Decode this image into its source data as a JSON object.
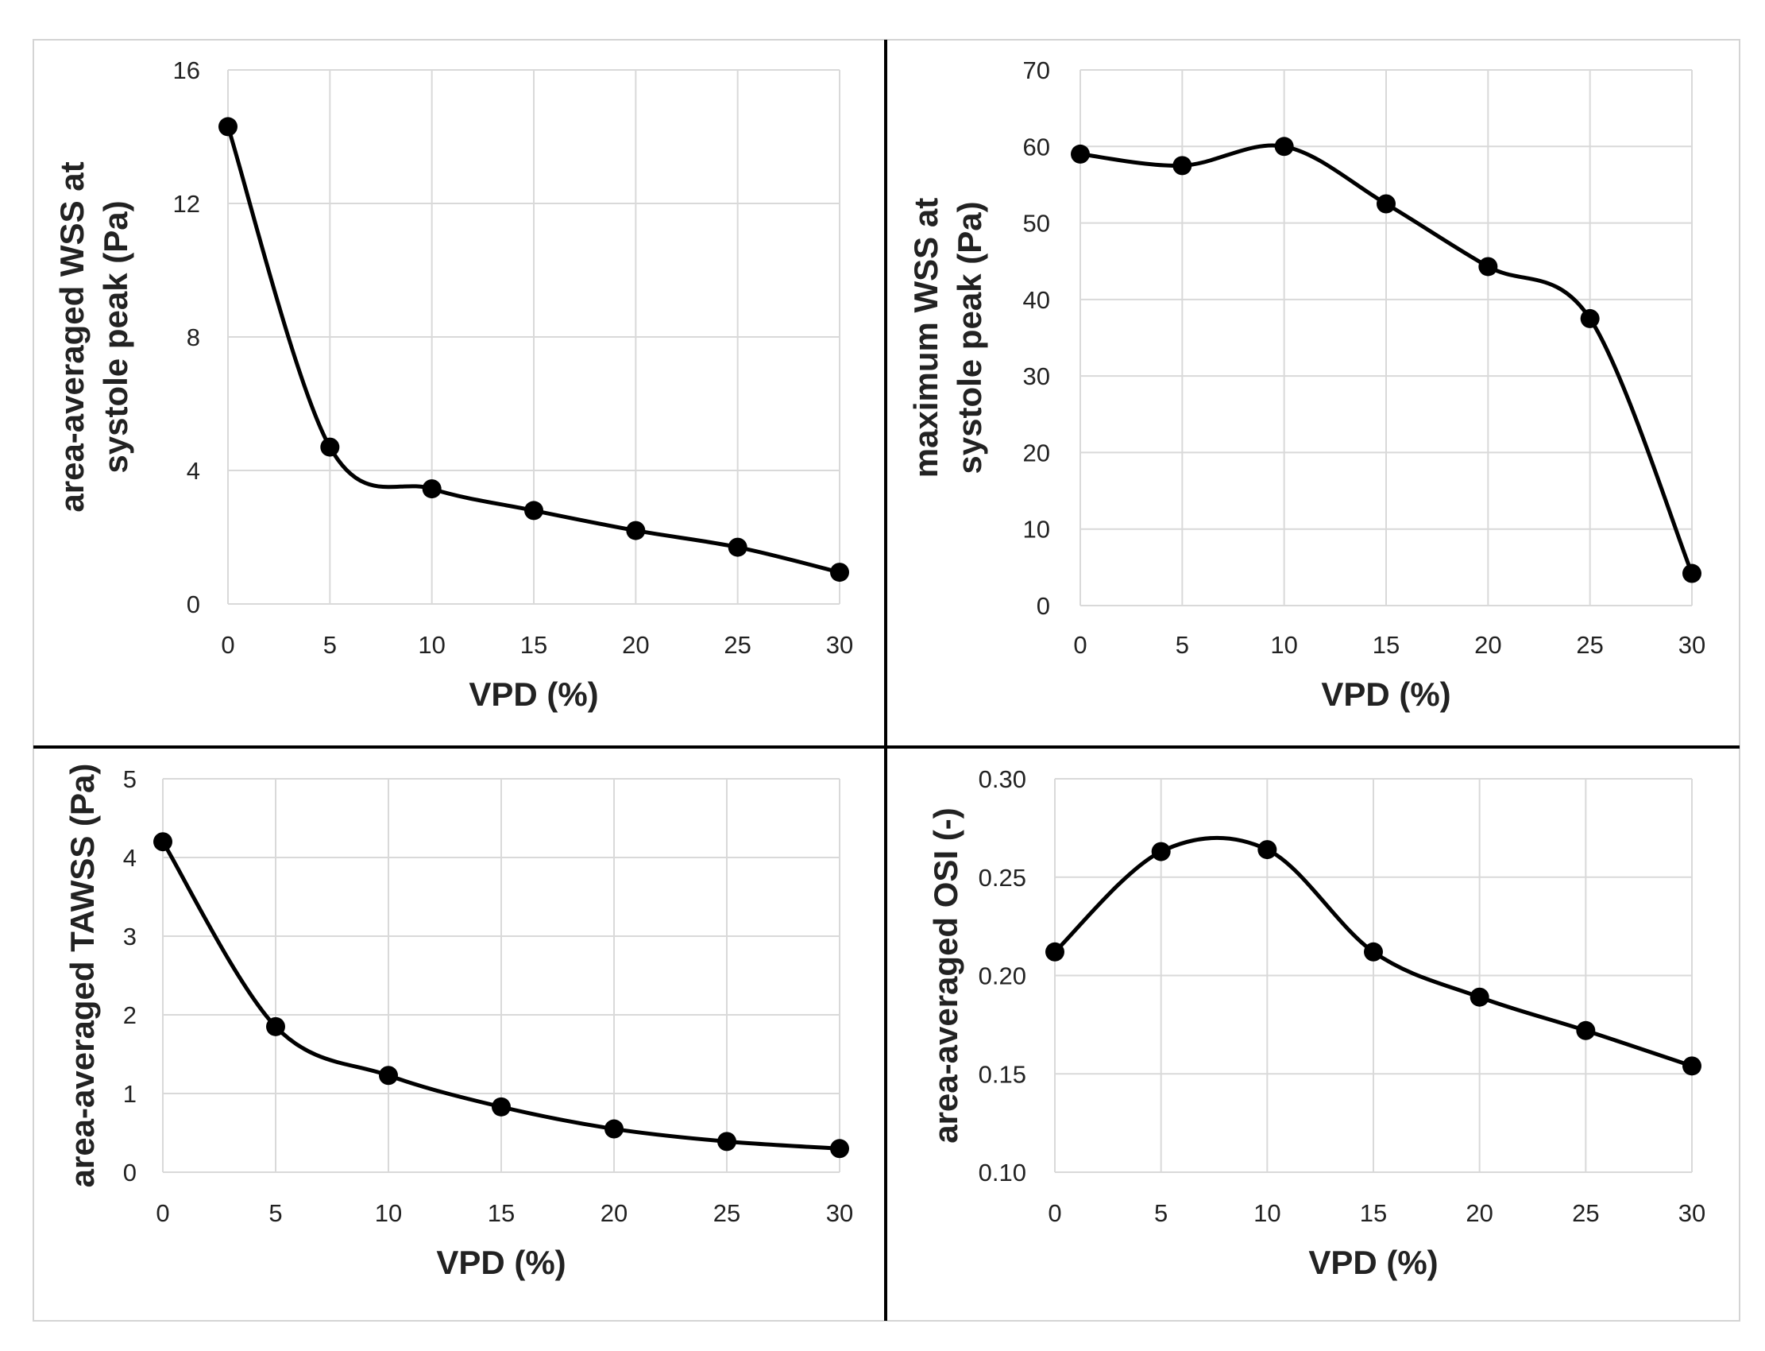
{
  "colors": {
    "line": "#000000",
    "marker": "#000000",
    "gridline": "#d9d9d9",
    "frame": "#d4d4d4",
    "divider": "#000000",
    "background": "#ffffff"
  },
  "chart_data": [
    {
      "type": "line",
      "id": "wss-area-avg",
      "x": [
        0,
        5,
        10,
        15,
        20,
        25,
        30
      ],
      "values": [
        14.3,
        4.7,
        3.45,
        2.8,
        2.2,
        1.7,
        0.95
      ],
      "xlabel": "VPD (%)",
      "ylabel_lines": [
        "area-averaged WSS at",
        "systole peak (Pa)"
      ],
      "xlim": [
        0,
        30
      ],
      "ylim": [
        0,
        16
      ],
      "xticks": [
        "0",
        "5",
        "10",
        "15",
        "20",
        "25",
        "30"
      ],
      "yticks": [
        "0",
        "4",
        "8",
        "12",
        "16"
      ],
      "yticks_values": [
        0,
        4,
        8,
        12,
        16
      ],
      "grid": true,
      "smooth": true,
      "markers": true
    },
    {
      "type": "line",
      "id": "wss-max",
      "x": [
        0,
        5,
        10,
        15,
        20,
        25,
        30
      ],
      "values": [
        59,
        57.5,
        60,
        52.5,
        44.3,
        37.5,
        4.2
      ],
      "xlabel": "VPD (%)",
      "ylabel_lines": [
        "maximum WSS at",
        "systole peak (Pa)"
      ],
      "xlim": [
        0,
        30
      ],
      "ylim": [
        0,
        70
      ],
      "xticks": [
        "0",
        "5",
        "10",
        "15",
        "20",
        "25",
        "30"
      ],
      "yticks": [
        "0",
        "10",
        "20",
        "30",
        "40",
        "50",
        "60",
        "70"
      ],
      "yticks_values": [
        0,
        10,
        20,
        30,
        40,
        50,
        60,
        70
      ],
      "grid": true,
      "smooth": true,
      "markers": true
    },
    {
      "type": "line",
      "id": "tawss",
      "x": [
        0,
        5,
        10,
        15,
        20,
        25,
        30
      ],
      "values": [
        4.2,
        1.85,
        1.23,
        0.83,
        0.55,
        0.39,
        0.3
      ],
      "xlabel": "VPD (%)",
      "ylabel_lines": [
        "area-averaged TAWSS (Pa)"
      ],
      "xlim": [
        0,
        30
      ],
      "ylim": [
        0,
        5
      ],
      "xticks": [
        "0",
        "5",
        "10",
        "15",
        "20",
        "25",
        "30"
      ],
      "yticks": [
        "0",
        "1",
        "2",
        "3",
        "4",
        "5"
      ],
      "yticks_values": [
        0,
        1,
        2,
        3,
        4,
        5
      ],
      "grid": true,
      "smooth": true,
      "markers": true
    },
    {
      "type": "line",
      "id": "osi",
      "x": [
        0,
        5,
        10,
        15,
        20,
        25,
        30
      ],
      "values": [
        0.212,
        0.263,
        0.264,
        0.212,
        0.189,
        0.172,
        0.154
      ],
      "xlabel": "VPD (%)",
      "ylabel_lines": [
        "area-averaged OSI (-)"
      ],
      "xlim": [
        0,
        30
      ],
      "ylim": [
        0.1,
        0.3
      ],
      "xticks": [
        "0",
        "5",
        "10",
        "15",
        "20",
        "25",
        "30"
      ],
      "yticks": [
        "0.10",
        "0.15",
        "0.20",
        "0.25",
        "0.30"
      ],
      "yticks_values": [
        0.1,
        0.15,
        0.2,
        0.25,
        0.3
      ],
      "grid": true,
      "smooth": true,
      "markers": true
    }
  ]
}
